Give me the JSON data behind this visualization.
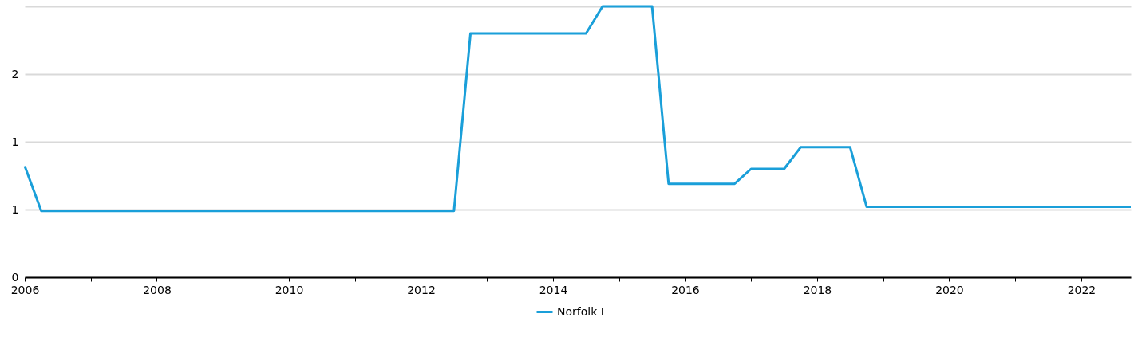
{
  "chart_data": {
    "type": "line",
    "x": [
      2006,
      2006.25,
      2012.5,
      2012.75,
      2014.5,
      2014.75,
      2015.5,
      2015.75,
      2016.75,
      2017,
      2017.5,
      2017.75,
      2018.5,
      2018.75,
      2022.75
    ],
    "series": [
      {
        "name": "Norfolk I",
        "color": "#1a9fd9",
        "values": [
          0.82,
          0.49,
          0.49,
          1.8,
          1.8,
          2.0,
          2.0,
          0.69,
          0.69,
          0.8,
          0.8,
          0.96,
          0.96,
          0.52,
          0.52
        ]
      }
    ],
    "xlim": [
      2006,
      2022.75
    ],
    "xticks": [
      2006,
      {
        "value": 2007,
        "label": null
      },
      2008,
      {
        "value": 2009,
        "label": null
      },
      2010,
      {
        "value": 2011,
        "label": null
      },
      2012,
      {
        "value": 2013,
        "label": null
      },
      2014,
      {
        "value": 2015,
        "label": null
      },
      2016,
      {
        "value": 2017,
        "label": null
      },
      2018,
      {
        "value": 2019,
        "label": null
      },
      2020,
      {
        "value": 2021,
        "label": null
      },
      2022
    ],
    "ylim": [
      0,
      2
    ],
    "yticks": [
      0,
      {
        "value": 0.5,
        "label": "1"
      },
      1,
      {
        "value": 1.5,
        "label": "2"
      },
      {
        "value": 2,
        "label": null
      }
    ],
    "grid": "y",
    "legend": "bottom",
    "marker": "none",
    "line_style": "solid"
  }
}
